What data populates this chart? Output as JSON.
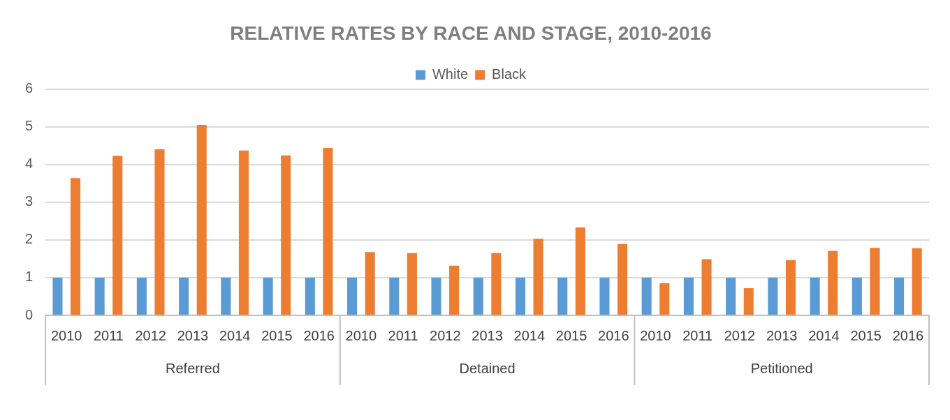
{
  "chart_data": {
    "type": "bar",
    "title": "RELATIVE RATES BY RACE AND STAGE, 2010-2016",
    "categories": [
      "2010",
      "2011",
      "2012",
      "2013",
      "2014",
      "2015",
      "2016",
      "2010",
      "2011",
      "2012",
      "2013",
      "2014",
      "2015",
      "2016",
      "2010",
      "2011",
      "2012",
      "2013",
      "2014",
      "2015",
      "2016"
    ],
    "series": [
      {
        "name": "White",
        "color": "#5b9bd5",
        "values": [
          1,
          1,
          1,
          1,
          1,
          1,
          1,
          1,
          1,
          1,
          1,
          1,
          1,
          1,
          1,
          1,
          1,
          1,
          1,
          1,
          1
        ]
      },
      {
        "name": "Black",
        "color": "#ed7d31",
        "values": [
          3.64,
          4.23,
          4.4,
          5.05,
          4.37,
          4.24,
          4.44,
          1.68,
          1.65,
          1.32,
          1.65,
          2.03,
          2.33,
          1.89,
          0.85,
          1.49,
          0.72,
          1.46,
          1.71,
          1.79,
          1.78
        ]
      }
    ],
    "annotations": [
      "Referred",
      "Detained",
      "Petitioned"
    ],
    "ylim": [
      0,
      6
    ],
    "yticks": [
      0,
      1,
      2,
      3,
      4,
      5,
      6
    ],
    "grid": "y",
    "legend": "top"
  }
}
